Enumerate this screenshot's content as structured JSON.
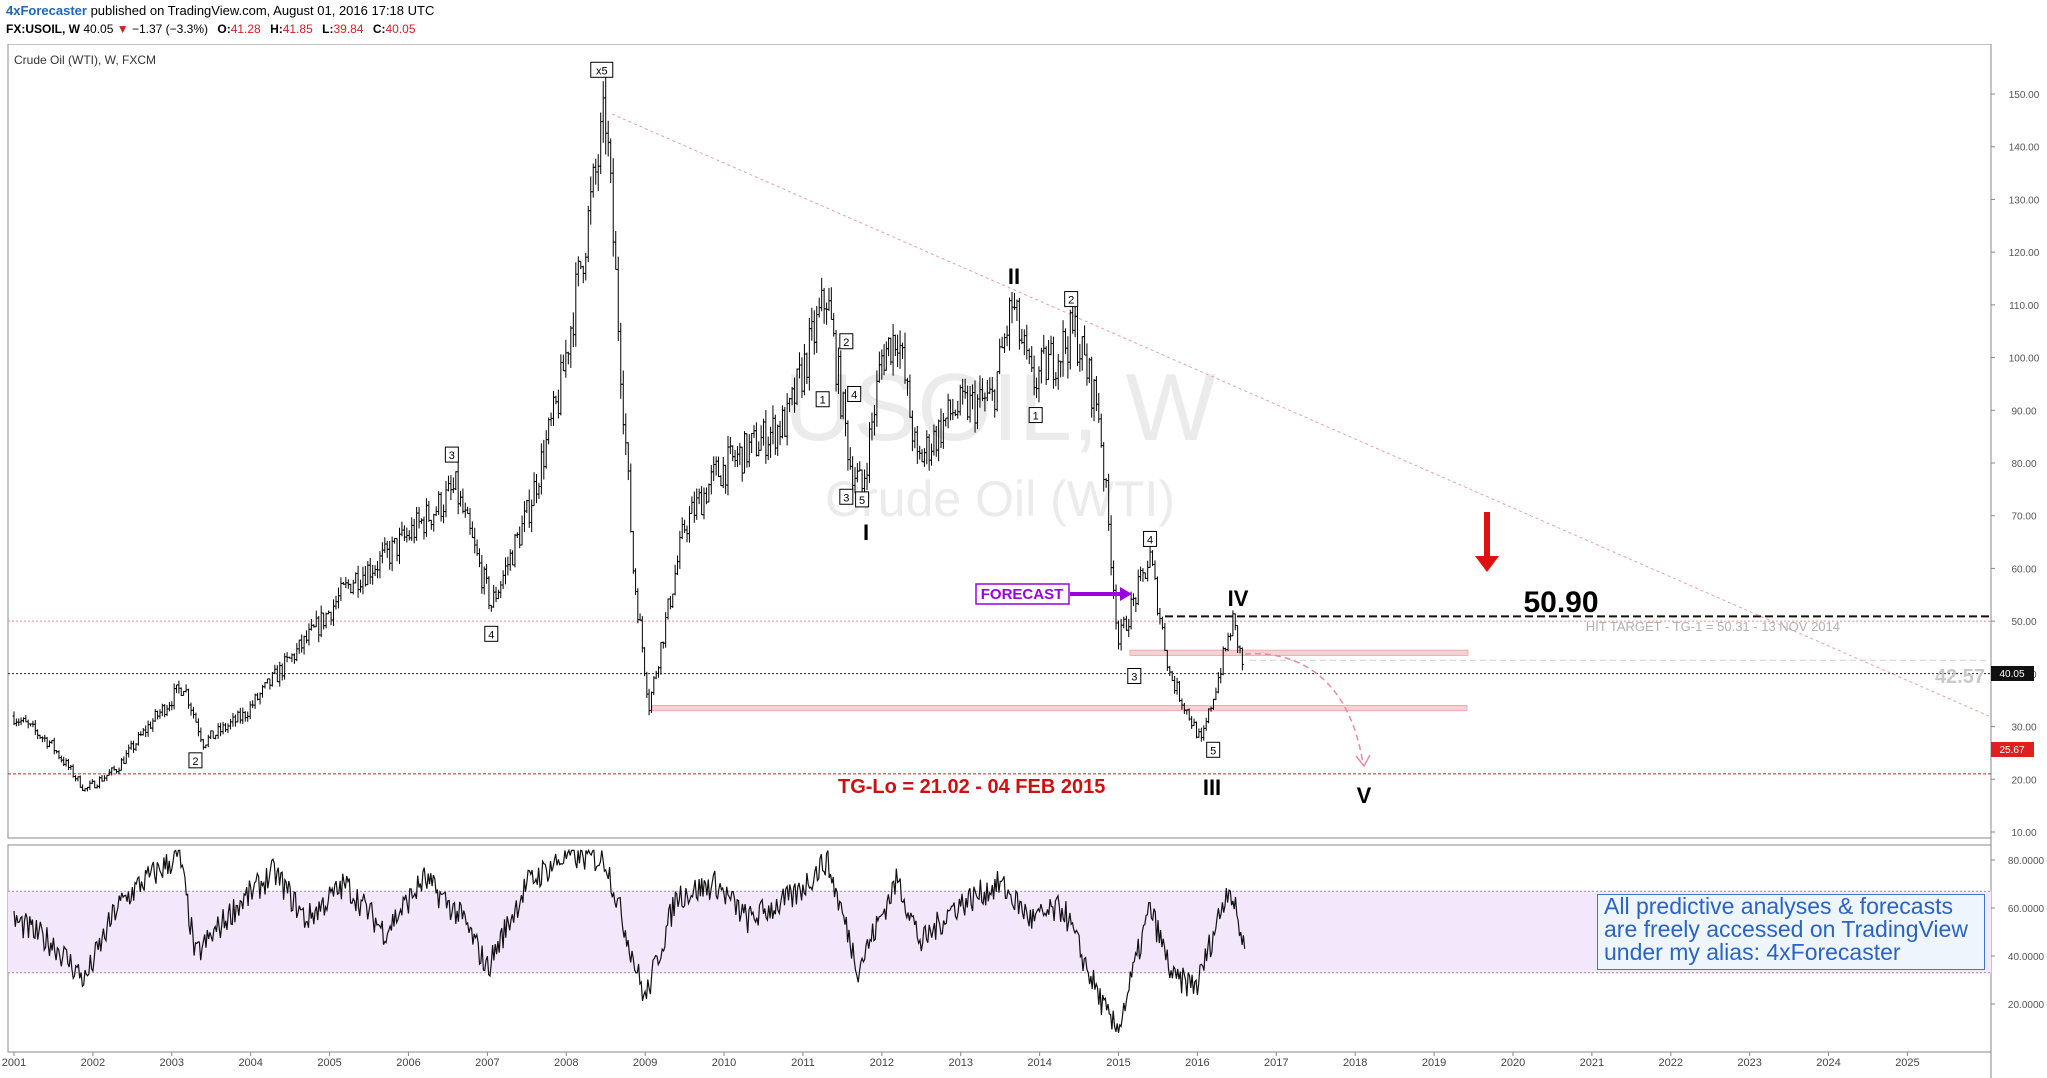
{
  "header": {
    "publisher": "4xForecaster",
    "published_text": "published on TradingView.com, August 01, 2016 17:18 UTC",
    "symbol": "FX:USOIL, W",
    "last": "40.05",
    "change_arrow": "▼",
    "change": "−1.37 (−3.3%)",
    "o_label": "O:",
    "o_value": "41.28",
    "h_label": "H:",
    "h_value": "41.85",
    "l_label": "L:",
    "l_value": "39.84",
    "c_label": "C:",
    "c_value": "40.05"
  },
  "chart_title": "Crude Oil (WTI), W, FXCM",
  "watermark": {
    "symbol": "USOIL, W",
    "name": "Crude Oil (WTI)"
  },
  "info_box": {
    "line1": "All predictive analyses & forecasts",
    "line2": "are freely accessed on TradingView",
    "line3": "under my alias: 4xForecaster"
  },
  "colors": {
    "candles": "#000000",
    "projection_line": "#e8a0a8",
    "red_level": "#d42020",
    "forecast_box": "#9b00e0",
    "arrow_down": "#e01010",
    "support_zone": "#f7d0d4",
    "rsi_band": "#f3e7fb",
    "info_text": "#2a64c3"
  },
  "chart_data": [
    {
      "type": "candlestick",
      "title": "Crude Oil (WTI), W, FXCM",
      "x_ticks": [
        "2001",
        "2002",
        "2003",
        "2004",
        "2005",
        "2006",
        "2007",
        "2008",
        "2009",
        "2010",
        "2011",
        "2012",
        "2013",
        "2014",
        "2015",
        "2016",
        "2017",
        "2018",
        "2019",
        "2020",
        "2021",
        "2022",
        "2023",
        "2024",
        "2025"
      ],
      "y_ticks": [
        "150.00",
        "140.00",
        "130.00",
        "120.00",
        "110.00",
        "100.00",
        "90.00",
        "80.00",
        "70.00",
        "60.00",
        "50.00",
        "40.00",
        "30.00",
        "20.00",
        "10.00"
      ],
      "ylim": [
        7,
        160
      ],
      "xlim": [
        2001.0,
        2026.3
      ],
      "series": [
        {
          "x": [
            2001.0,
            2001.45,
            2001.9,
            2002.3,
            2002.7,
            2003.15,
            2003.4,
            2003.9,
            2004.4,
            2004.8,
            2005.3,
            2005.7,
            2006.6,
            2007.05,
            2007.5,
            2007.9,
            2008.5,
            2008.85,
            2009.05,
            2009.5,
            2009.9,
            2010.35,
            2010.8,
            2011.3,
            2011.6,
            2011.75,
            2012.0,
            2012.2,
            2012.45,
            2012.9,
            2013.4,
            2013.65,
            2013.9,
            2014.45,
            2014.75,
            2015.0,
            2015.1,
            2015.4,
            2015.65,
            2016.05,
            2016.45,
            2016.6
          ],
          "y": [
            32,
            27,
            18,
            22,
            30,
            38,
            27,
            32,
            41,
            48,
            58,
            62,
            75,
            53,
            70,
            92,
            146,
            60,
            34,
            68,
            78,
            83,
            88,
            112,
            80,
            75,
            100,
            105,
            80,
            90,
            92,
            110,
            95,
            105,
            90,
            46,
            50,
            62,
            40,
            27,
            50,
            40
          ]
        }
      ],
      "labels": {
        "x5": "x5",
        "II": "II",
        "I": "I",
        "III": "III",
        "IV": "IV",
        "V": "V",
        "box_1a": "1",
        "box_2a": "2",
        "box_3a": "3",
        "box_4a": "4",
        "box_5a": "5",
        "box_1b": "1",
        "box_2b": "2",
        "box_3_early": "3",
        "box_4_early": "4",
        "box_2_early": "2",
        "box_3_2015": "3",
        "box_4_2015": "4",
        "box_5_2016": "5",
        "forecast": "FORECAST",
        "target_value": "50.90",
        "hit_target": "HIT TARGET - TG-1 = 50.31 - 13 NOV 2014",
        "tg_lo": "TG-Lo = 21.02 - 04 FEB 2015",
        "level_4257": "42.57"
      },
      "levels": {
        "last_price": 40.05,
        "tg_lo": 21.02,
        "level_50": 50.0,
        "target": 50.9,
        "level_4257": 42.57,
        "zone_upper": [
          43.5,
          44.5
        ],
        "zone_lower": [
          33.0,
          34.0
        ]
      },
      "price_tags": {
        "last": "40.05",
        "low": "25.67"
      }
    },
    {
      "type": "line",
      "title": "RSI",
      "y_ticks": [
        "80.0000",
        "60.0000",
        "40.0000",
        "20.0000"
      ],
      "ylim": [
        5,
        85
      ],
      "band": [
        33,
        67
      ],
      "series": [
        {
          "x": [
            2001.0,
            2001.5,
            2001.9,
            2002.3,
            2002.6,
            2003.1,
            2003.3,
            2003.8,
            2004.3,
            2004.7,
            2005.2,
            2005.7,
            2006.2,
            2006.7,
            2007.0,
            2007.5,
            2008.0,
            2008.5,
            2008.8,
            2009.0,
            2009.4,
            2009.9,
            2010.3,
            2010.9,
            2011.3,
            2011.7,
            2012.2,
            2012.5,
            2012.9,
            2013.5,
            2013.9,
            2014.3,
            2014.6,
            2014.9,
            2015.0,
            2015.4,
            2015.7,
            2016.0,
            2016.4,
            2016.6
          ],
          "y": [
            55,
            45,
            30,
            60,
            70,
            82,
            40,
            60,
            75,
            55,
            70,
            50,
            72,
            55,
            35,
            70,
            82,
            80,
            45,
            22,
            65,
            70,
            55,
            65,
            80,
            35,
            72,
            45,
            60,
            70,
            55,
            60,
            35,
            12,
            10,
            60,
            30,
            28,
            70,
            43
          ]
        }
      ]
    }
  ]
}
